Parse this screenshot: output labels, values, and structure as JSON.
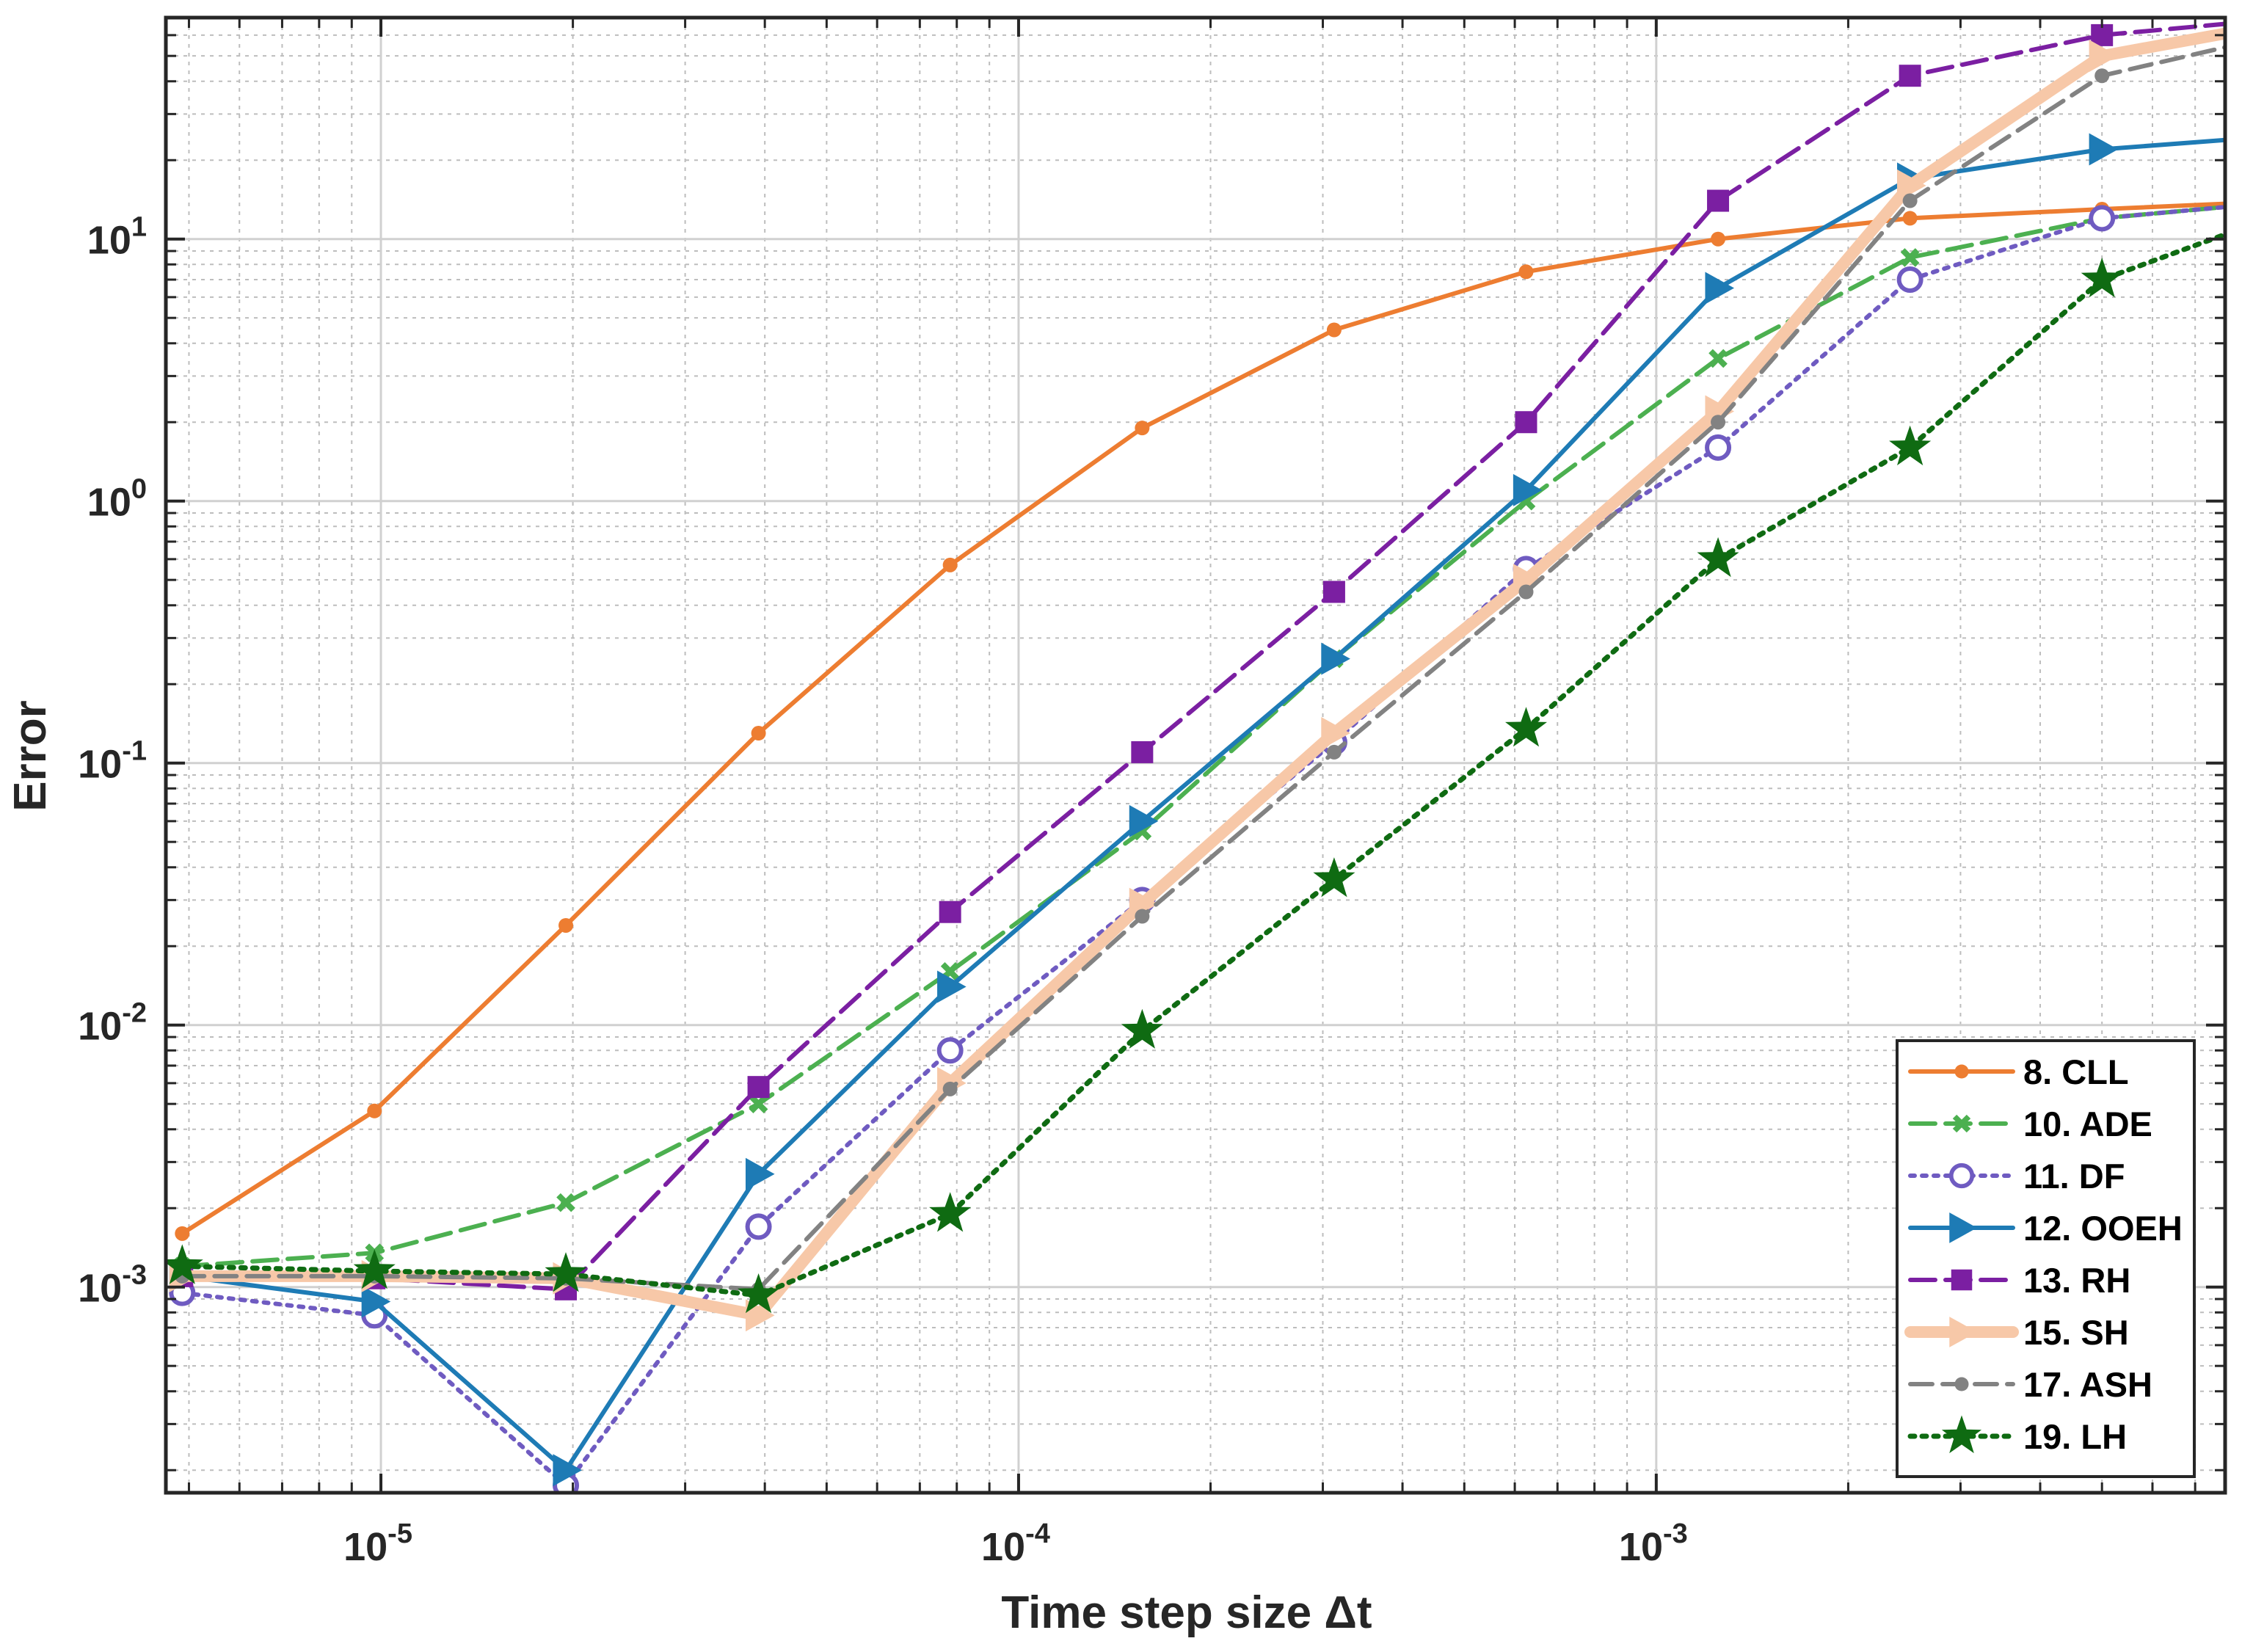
{
  "chart_data": {
    "type": "line",
    "title": "",
    "xlabel": "Time step size Δt",
    "ylabel": "Error",
    "xscale": "log",
    "yscale": "log",
    "xlim": [
      4.6e-06,
      0.0078
    ],
    "ylim": [
      0.000164,
      70
    ],
    "grid": "major and minor",
    "legend_position": "bottom-right",
    "x_ticks": [
      {
        "value": 1e-05,
        "base": "10",
        "exp": "-5"
      },
      {
        "value": 0.0001,
        "base": "10",
        "exp": "-4"
      },
      {
        "value": 0.001,
        "base": "10",
        "exp": "-3"
      }
    ],
    "y_ticks": [
      {
        "value": 0.001,
        "base": "10",
        "exp": "-3"
      },
      {
        "value": 0.01,
        "base": "10",
        "exp": "-2"
      },
      {
        "value": 0.1,
        "base": "10",
        "exp": "-1"
      },
      {
        "value": 1,
        "base": "10",
        "exp": "0"
      },
      {
        "value": 10,
        "base": "10",
        "exp": "1"
      }
    ],
    "x": [
      4.88e-06,
      9.77e-06,
      1.95e-05,
      3.91e-05,
      7.81e-05,
      0.00015625,
      0.0003125,
      0.000625,
      0.00125,
      0.0025,
      0.005,
      0.01
    ],
    "series": [
      {
        "name": "8. CLL",
        "color": "#ED7D31",
        "dash": "",
        "width": 6,
        "marker": "dot",
        "values": [
          0.0016,
          0.0047,
          0.024,
          0.13,
          0.57,
          1.9,
          4.5,
          7.5,
          10,
          12,
          13,
          14
        ]
      },
      {
        "name": "10. ADE",
        "color": "#4CB050",
        "dash": "34,14",
        "width": 6,
        "marker": "x",
        "values": [
          0.0012,
          0.00135,
          0.0021,
          0.005,
          0.016,
          0.055,
          0.25,
          1.0,
          3.5,
          8.5,
          12,
          14
        ]
      },
      {
        "name": "11. DF",
        "color": "#6F5BC1",
        "dash": "6,10",
        "width": 6,
        "marker": "circle",
        "values": [
          0.00095,
          0.00078,
          0.000175,
          0.0017,
          0.008,
          0.03,
          0.12,
          0.55,
          1.6,
          7,
          12,
          14
        ]
      },
      {
        "name": "12. OOEH",
        "color": "#1E7BB5",
        "dash": "",
        "width": 6,
        "marker": "triangle",
        "values": [
          0.0011,
          0.00088,
          0.0002,
          0.0027,
          0.014,
          0.06,
          0.25,
          1.1,
          6.5,
          17,
          22,
          25
        ]
      },
      {
        "name": "13. RH",
        "color": "#7B1FA2",
        "dash": "34,14",
        "width": 6,
        "marker": "square",
        "values": [
          0.0011,
          0.00108,
          0.00098,
          0.0058,
          0.027,
          0.11,
          0.45,
          2.0,
          14,
          42,
          60,
          70
        ]
      },
      {
        "name": "15. SH",
        "color": "#F7C8A8",
        "dash": "",
        "width": 16,
        "marker": "triangle",
        "values": [
          0.0011,
          0.0011,
          0.00108,
          0.00078,
          0.006,
          0.029,
          0.13,
          0.5,
          2.2,
          16,
          50,
          68
        ]
      },
      {
        "name": "17. ASH",
        "color": "#828282",
        "dash": "30,14",
        "width": 6,
        "marker": "dot",
        "values": [
          0.0011,
          0.0011,
          0.00108,
          0.00098,
          0.0057,
          0.026,
          0.11,
          0.45,
          2.0,
          14,
          42,
          62
        ]
      },
      {
        "name": "19. LH",
        "color": "#0F6B12",
        "dash": "6,10",
        "width": 7,
        "marker": "star",
        "values": [
          0.0012,
          0.00115,
          0.00112,
          0.00093,
          0.0019,
          0.0095,
          0.036,
          0.135,
          0.6,
          1.6,
          7,
          13
        ]
      }
    ]
  }
}
